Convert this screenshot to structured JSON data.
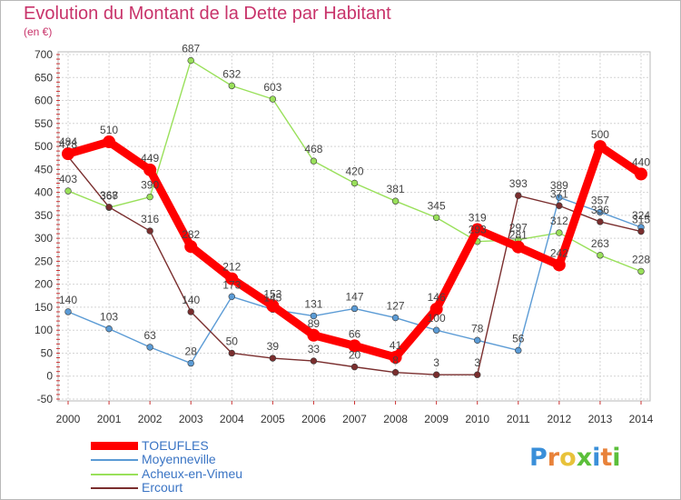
{
  "title": "Evolution du Montant de la Dette par Habitant",
  "unit": "(en €)",
  "logo": "Proxiti",
  "chart_data": {
    "type": "line",
    "x": [
      "2000",
      "2001",
      "2002",
      "2003",
      "2004",
      "2005",
      "2006",
      "2007",
      "2008",
      "2009",
      "2010",
      "2011",
      "2012",
      "2013",
      "2014"
    ],
    "y_ticks": [
      "700",
      "650",
      "600",
      "550",
      "500",
      "450",
      "400",
      "350",
      "300",
      "250",
      "200",
      "150",
      "100",
      "50",
      "0",
      "-50"
    ],
    "ylim": [
      -50,
      700
    ],
    "grid": true,
    "legend_position": "bottom-left",
    "series": [
      {
        "name": "TOEUFLES",
        "color": "#ff0000",
        "labels": [
          "484",
          "510",
          "449",
          "282",
          "212",
          "153",
          "89",
          "66",
          "41",
          "146",
          "319",
          "281",
          "242",
          "500",
          "440"
        ],
        "values": [
          484,
          510,
          449,
          282,
          212,
          153,
          89,
          66,
          41,
          146,
          319,
          281,
          242,
          500,
          440
        ]
      },
      {
        "name": "Moyenneville",
        "color": "#5b9bd5",
        "labels": [
          "140",
          "103",
          "63",
          "28",
          "173",
          "145",
          "131",
          "147",
          "127",
          "100",
          "78",
          "56",
          "389",
          "357",
          "324"
        ],
        "values": [
          140,
          103,
          63,
          28,
          173,
          145,
          131,
          147,
          127,
          100,
          78,
          56,
          389,
          357,
          324
        ]
      },
      {
        "name": "Acheux-en-Vimeu",
        "color": "#99e05a",
        "labels": [
          "403",
          "367",
          "390",
          "687",
          "632",
          "603",
          "468",
          "420",
          "381",
          "345",
          "293",
          "297",
          "312",
          "263",
          "228"
        ],
        "values": [
          403,
          367,
          390,
          687,
          632,
          603,
          468,
          420,
          381,
          345,
          293,
          297,
          312,
          263,
          228
        ]
      },
      {
        "name": "Ercourt",
        "color": "#7a2e2e",
        "labels": [
          "478",
          "368",
          "316",
          "140",
          "50",
          "39",
          "33",
          "20",
          "8",
          "3",
          "3",
          "393",
          "371",
          "336",
          "315"
        ],
        "values": [
          478,
          368,
          316,
          140,
          50,
          39,
          33,
          20,
          8,
          3,
          3,
          393,
          371,
          336,
          315
        ]
      }
    ]
  }
}
